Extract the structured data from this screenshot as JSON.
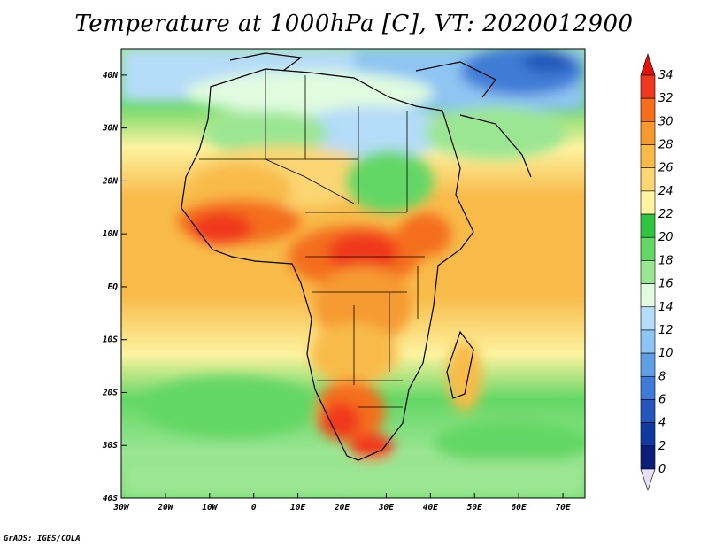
{
  "title": "Temperature at 1000hPa [C], VT: 2020012900",
  "credit": "GrADS: IGES/COLA",
  "map": {
    "region": "Africa",
    "lon_range": [
      -30,
      75
    ],
    "lat_range": [
      -40,
      45
    ],
    "lon_ticks": [
      "30W",
      "20W",
      "10W",
      "0",
      "10E",
      "20E",
      "30E",
      "40E",
      "50E",
      "60E",
      "70E"
    ],
    "lat_ticks": [
      "40N",
      "30N",
      "20N",
      "10N",
      "EQ",
      "10S",
      "20S",
      "30S",
      "40S"
    ]
  },
  "colorbar": {
    "levels": [
      "34",
      "32",
      "30",
      "28",
      "26",
      "24",
      "22",
      "20",
      "18",
      "16",
      "14",
      "12",
      "10",
      "8",
      "6",
      "4",
      "2",
      "0"
    ],
    "colors": [
      "#e0130b",
      "#f0381f",
      "#f46e1c",
      "#f69a30",
      "#f8bb4a",
      "#fbd672",
      "#fdf3a0",
      "#2fc540",
      "#63d765",
      "#9be693",
      "#e0fbe0",
      "#b5dcf8",
      "#8ec5f3",
      "#5e9fe5",
      "#3f7bd6",
      "#2456bb",
      "#113aa0",
      "#0a1e7a",
      "#e6e0f6"
    ]
  }
}
